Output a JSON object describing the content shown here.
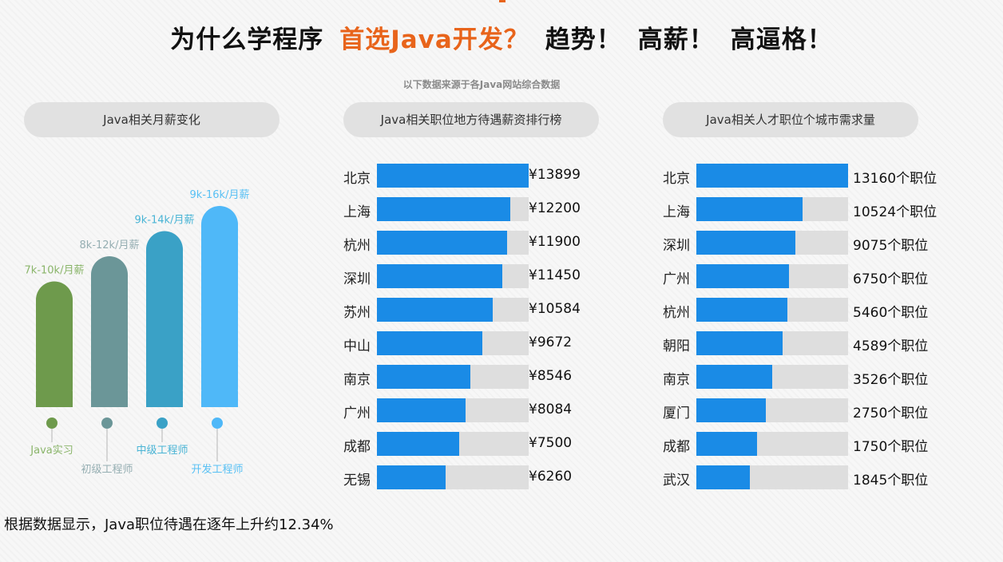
{
  "headline": {
    "part1": "为什么学程序",
    "part2": "首选Java开发？",
    "part3": "趋势！",
    "part4": "高薪！",
    "part5": "高逼格！"
  },
  "source_note": "以下数据来源于各Java网站综合数据",
  "footer_note": "根据数据显示，Java职位待遇在逐年上升约12.34%",
  "colors": {
    "accent": "#e8641b",
    "bar": "#1a8be6",
    "track": "#dedede",
    "stage": [
      "#6e9a4c",
      "#6b9698",
      "#3aa1c6",
      "#4fb8f8"
    ],
    "stage_label": [
      "#8ab56a",
      "#95aeb2",
      "#49b4d5",
      "#58c0f4"
    ]
  },
  "chart_data": [
    {
      "type": "bar",
      "title": "Java相关月薪变化",
      "categories": [
        "Java实习",
        "初级工程师",
        "中级工程师",
        "开发工程师"
      ],
      "value_labels": [
        "7k-10k/月薪",
        "8k-12k/月薪",
        "9k-14k/月薪",
        "9k-16k/月薪"
      ],
      "values": [
        10,
        12,
        14,
        16
      ],
      "unit": "k/月"
    },
    {
      "type": "bar",
      "title": "Java相关职位地方待遇薪资排行榜",
      "orientation": "horizontal",
      "categories": [
        "北京",
        "上海",
        "杭州",
        "深圳",
        "苏州",
        "中山",
        "南京",
        "广州",
        "成都",
        "无锡"
      ],
      "values": [
        13899,
        12200,
        11900,
        11450,
        10584,
        9672,
        8546,
        8084,
        7500,
        6260
      ],
      "value_prefix": "¥",
      "value_suffix": "",
      "xlim": [
        0,
        13899
      ]
    },
    {
      "type": "bar",
      "title": "Java相关人才职位个城市需求量",
      "orientation": "horizontal",
      "categories": [
        "北京",
        "上海",
        "深圳",
        "广州",
        "杭州",
        "朝阳",
        "南京",
        "厦门",
        "成都",
        "武汉"
      ],
      "values": [
        13160,
        10524,
        9075,
        6750,
        5460,
        4589,
        3526,
        2750,
        1750,
        1845
      ],
      "fill_fraction": [
        1.0,
        0.7,
        0.65,
        0.61,
        0.6,
        0.57,
        0.5,
        0.46,
        0.4,
        0.35
      ],
      "value_prefix": "",
      "value_suffix": "个职位"
    }
  ]
}
